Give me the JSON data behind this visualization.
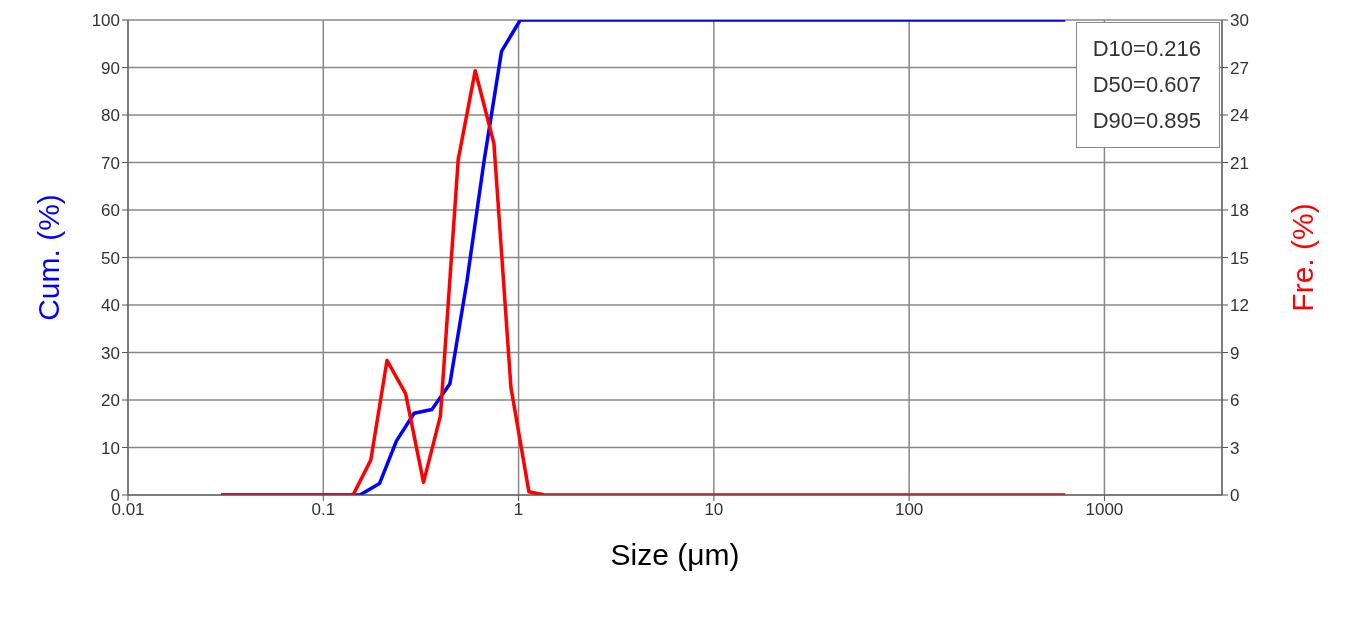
{
  "chart_data": {
    "type": "line",
    "xlabel": "Size (μm)",
    "ylabel": "Cum. (%)",
    "y2label": "Fre. (%)",
    "log": "x",
    "grid": true,
    "legend": false,
    "marker": "none",
    "line_style": "solid",
    "xlim": [
      0.01,
      4000
    ],
    "xticks": [
      0.01,
      0.1,
      1,
      10,
      100,
      1000
    ],
    "ylim": [
      0,
      100
    ],
    "yticks": [
      0,
      10,
      20,
      30,
      40,
      50,
      60,
      70,
      80,
      90,
      100
    ],
    "y2lim": [
      0,
      30
    ],
    "y2ticks": [
      0,
      3,
      6,
      9,
      12,
      15,
      18,
      21,
      24,
      27,
      30
    ],
    "annotations": [
      "D10=0.216",
      "D50=0.607",
      "D90=0.895"
    ],
    "series": [
      {
        "color": "#0000ff",
        "x": [
          0.03,
          0.154,
          0.194,
          0.237,
          0.292,
          0.36,
          0.445,
          0.543,
          0.664,
          0.818,
          1.02,
          630
        ],
        "values": [
          0,
          0,
          2.4,
          11.4,
          17.2,
          18,
          23.4,
          44.8,
          70,
          93.4,
          100,
          100
        ]
      },
      {
        "color": "#ff0000",
        "axis": "y2",
        "x": [
          0.03,
          0.142,
          0.175,
          0.212,
          0.264,
          0.326,
          0.398,
          0.491,
          0.6,
          0.748,
          0.914,
          1.13,
          1.36,
          630
        ],
        "values": [
          0,
          0,
          2.2,
          8.5,
          6.4,
          0.8,
          5.0,
          21.2,
          26.8,
          22.2,
          6.8,
          0.2,
          0,
          0
        ]
      }
    ]
  }
}
